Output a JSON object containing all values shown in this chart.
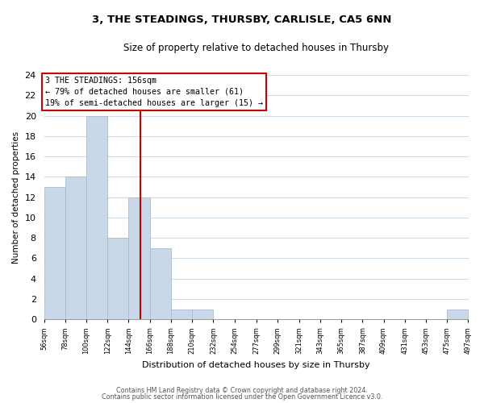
{
  "title": "3, THE STEADINGS, THURSBY, CARLISLE, CA5 6NN",
  "subtitle": "Size of property relative to detached houses in Thursby",
  "xlabel": "Distribution of detached houses by size in Thursby",
  "ylabel": "Number of detached properties",
  "bar_color": "#c8d8e8",
  "bar_edge_color": "#a8bccf",
  "bins": [
    56,
    78,
    100,
    122,
    144,
    166,
    188,
    210,
    232,
    254,
    277,
    299,
    321,
    343,
    365,
    387,
    409,
    431,
    453,
    475,
    497
  ],
  "bar_heights": [
    13,
    14,
    20,
    8,
    12,
    7,
    1,
    1,
    0,
    0,
    0,
    0,
    0,
    0,
    0,
    0,
    0,
    0,
    0,
    1
  ],
  "red_line_x": 156,
  "ylim": [
    0,
    24
  ],
  "yticks": [
    0,
    2,
    4,
    6,
    8,
    10,
    12,
    14,
    16,
    18,
    20,
    22,
    24
  ],
  "annotation_title": "3 THE STEADINGS: 156sqm",
  "annotation_line1": "← 79% of detached houses are smaller (61)",
  "annotation_line2": "19% of semi-detached houses are larger (15) →",
  "footer_line1": "Contains HM Land Registry data © Crown copyright and database right 2024.",
  "footer_line2": "Contains public sector information licensed under the Open Government Licence v3.0.",
  "tick_labels": [
    "56sqm",
    "78sqm",
    "100sqm",
    "122sqm",
    "144sqm",
    "166sqm",
    "188sqm",
    "210sqm",
    "232sqm",
    "254sqm",
    "277sqm",
    "299sqm",
    "321sqm",
    "343sqm",
    "365sqm",
    "387sqm",
    "409sqm",
    "431sqm",
    "453sqm",
    "475sqm",
    "497sqm"
  ],
  "background_color": "#ffffff",
  "grid_color": "#d0dce8"
}
